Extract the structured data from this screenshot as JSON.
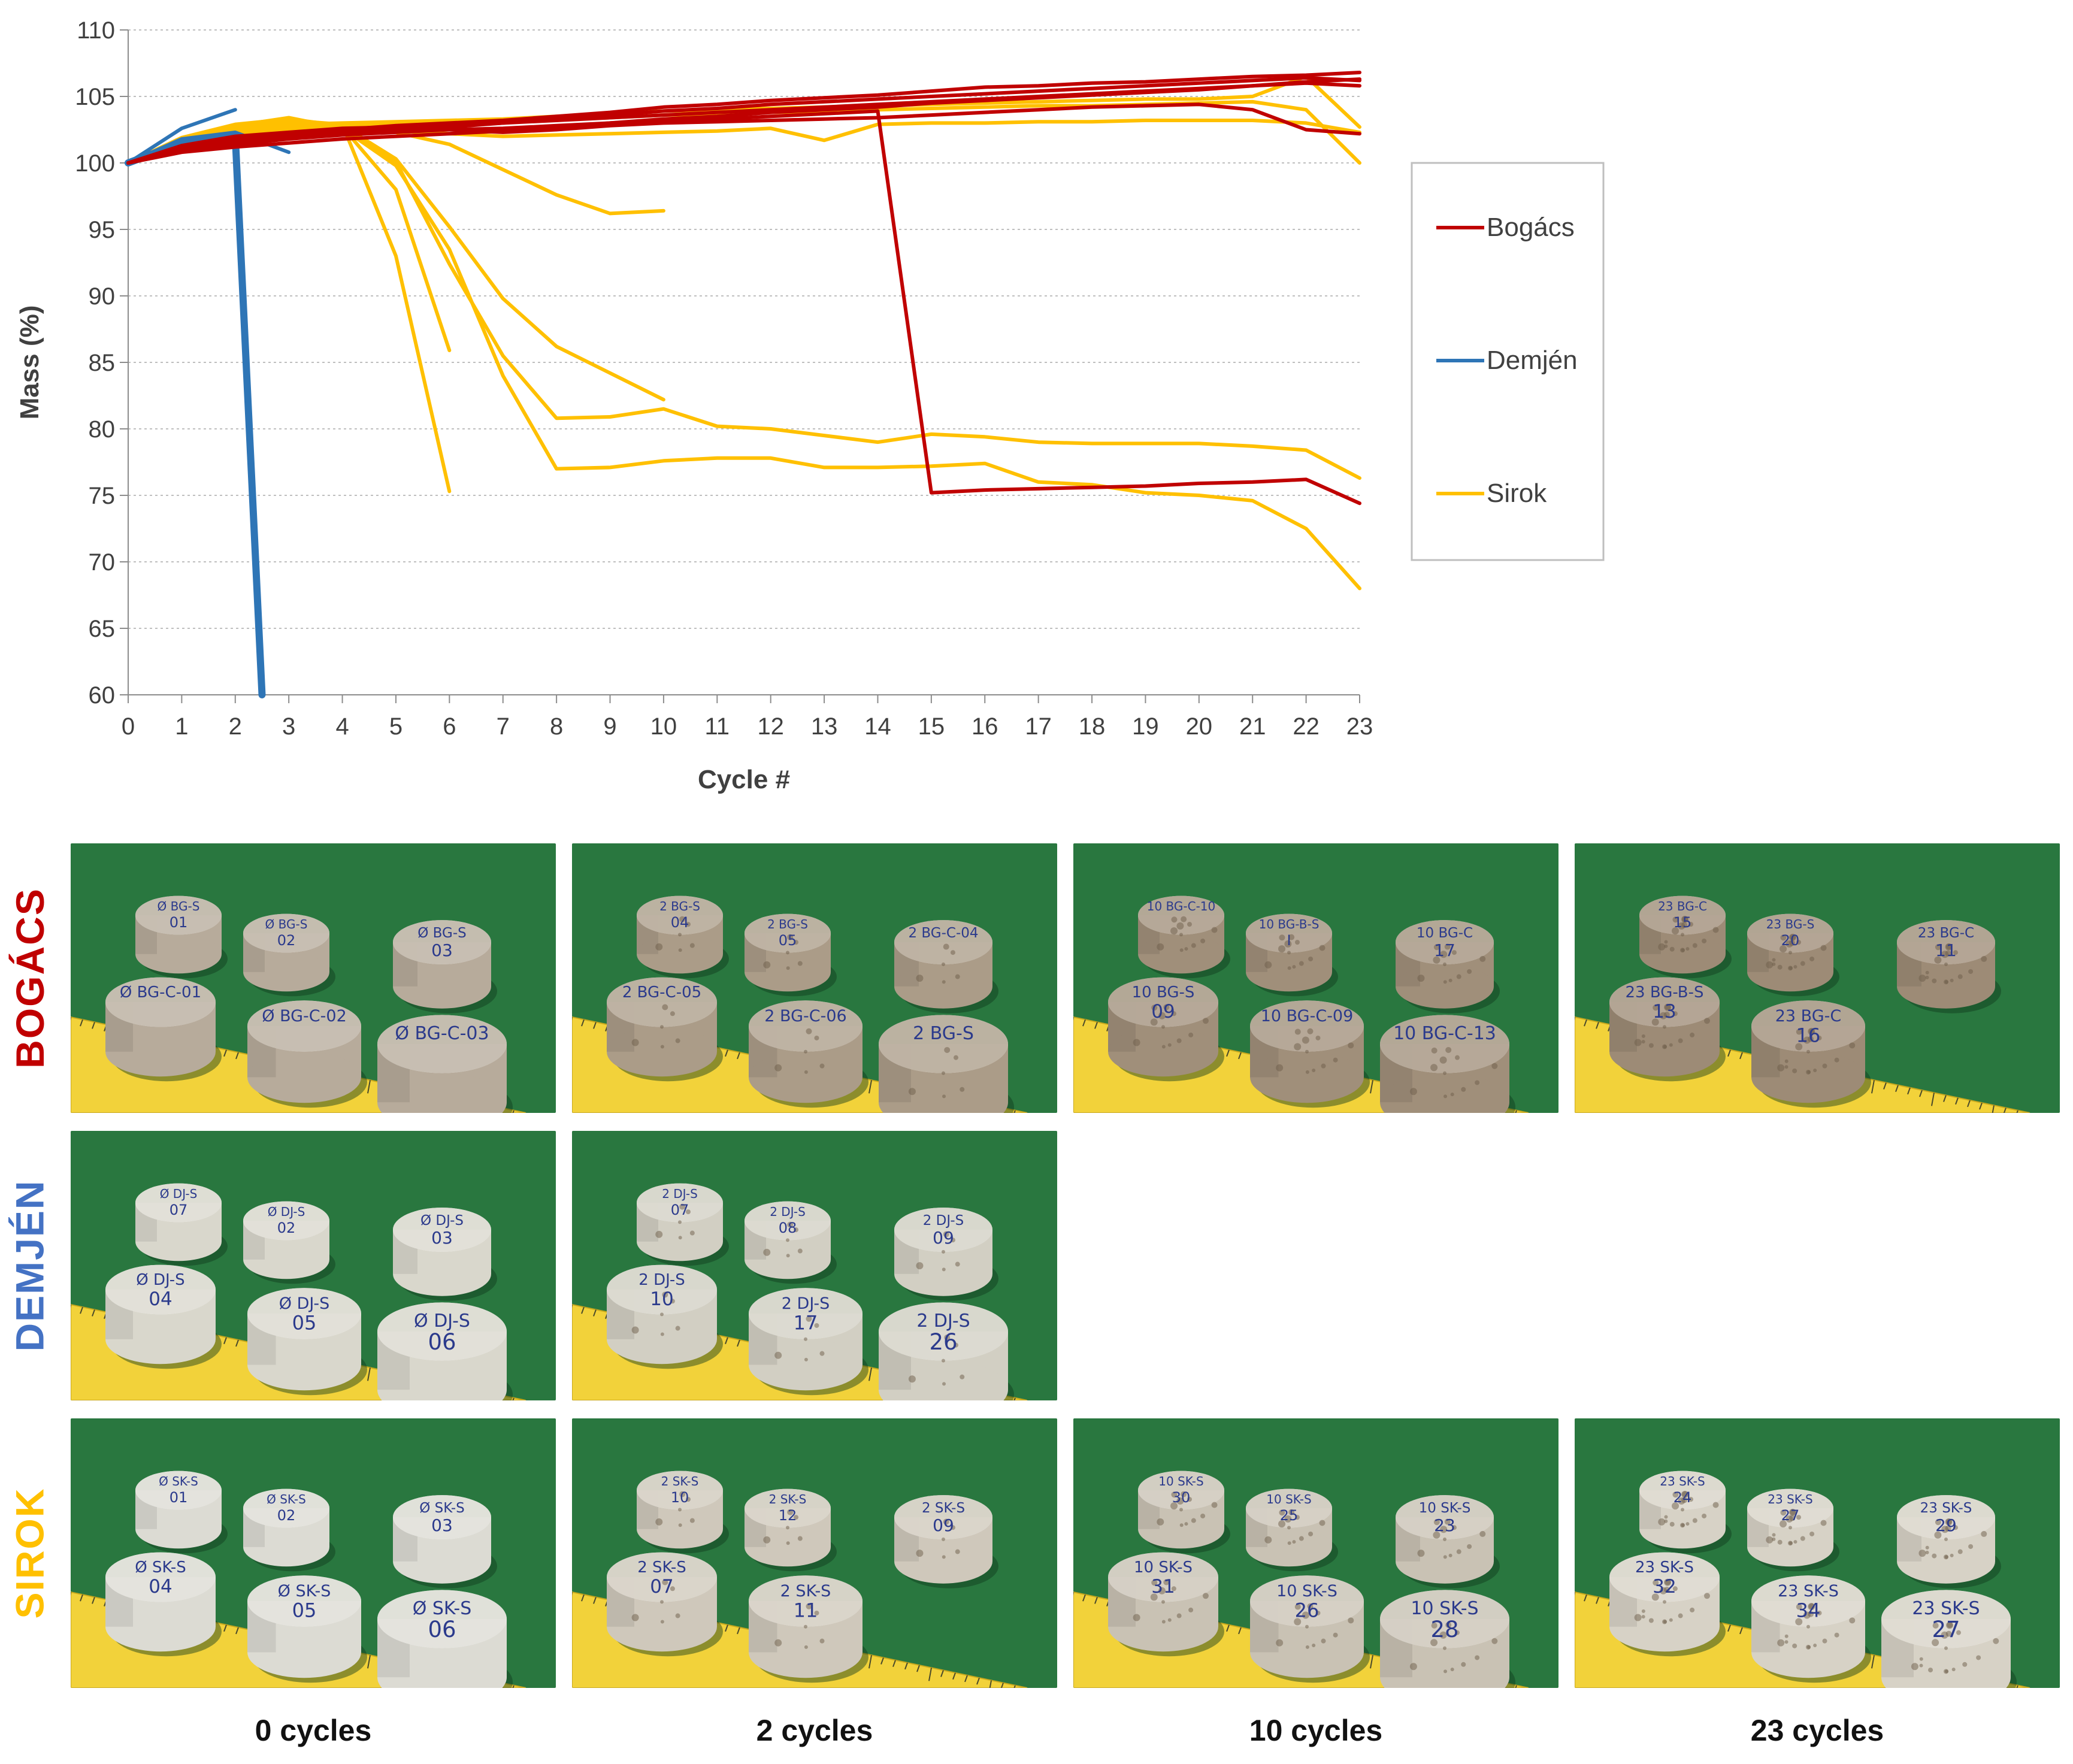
{
  "chart_data": {
    "type": "line",
    "title": "",
    "xlabel": "Cycle #",
    "ylabel": "Mass (%)",
    "xlim": [
      0,
      23
    ],
    "ylim": [
      60,
      110
    ],
    "x_ticks": [
      "0",
      "1",
      "2",
      "3",
      "4",
      "5",
      "6",
      "7",
      "8",
      "9",
      "10",
      "11",
      "12",
      "13",
      "14",
      "15",
      "16",
      "17",
      "18",
      "19",
      "20",
      "21",
      "22",
      "23"
    ],
    "y_ticks": [
      "60",
      "65",
      "70",
      "75",
      "80",
      "85",
      "90",
      "95",
      "100",
      "105",
      "110"
    ],
    "grid": "horizontal dotted",
    "legend_position": "right",
    "legend": [
      {
        "name": "Bogács",
        "color": "#c00000"
      },
      {
        "name": "Demjén",
        "color": "#2e75b6"
      },
      {
        "name": "Sirok",
        "color": "#ffc000"
      }
    ],
    "series": [
      {
        "group": "Bogács",
        "x": [
          0,
          1,
          2,
          3,
          4,
          5,
          6,
          7,
          8,
          9,
          10,
          11,
          12,
          13,
          14,
          15,
          16,
          17,
          18,
          19,
          20,
          21,
          22,
          23
        ],
        "y": [
          100,
          101.2,
          101.8,
          102.1,
          102.5,
          102.8,
          103.0,
          103.2,
          103.5,
          103.8,
          104.2,
          104.4,
          104.7,
          104.9,
          105.1,
          105.4,
          105.7,
          105.8,
          106.0,
          106.1,
          106.3,
          106.5,
          106.6,
          106.8
        ]
      },
      {
        "group": "Bogács",
        "x": [
          0,
          1,
          2,
          3,
          4,
          5,
          6,
          7,
          8,
          9,
          10,
          11,
          12,
          13,
          14,
          15,
          16,
          17,
          18,
          19,
          20,
          21,
          22,
          23
        ],
        "y": [
          100,
          101.0,
          101.5,
          101.9,
          102.2,
          102.5,
          102.7,
          103.0,
          103.3,
          103.6,
          103.9,
          104.1,
          104.4,
          104.6,
          104.8,
          105.0,
          105.2,
          105.4,
          105.6,
          105.8,
          106.0,
          106.2,
          106.4,
          106.2
        ]
      },
      {
        "group": "Bogács",
        "x": [
          0,
          1,
          2,
          3,
          4,
          5,
          6,
          7,
          8,
          9,
          10,
          11,
          12,
          13,
          14,
          15,
          16,
          17,
          18,
          19,
          20,
          21,
          22,
          23
        ],
        "y": [
          100,
          100.8,
          101.2,
          101.5,
          101.8,
          102.0,
          102.2,
          102.4,
          102.7,
          103.0,
          103.3,
          103.5,
          103.8,
          104.0,
          104.2,
          104.5,
          104.7,
          104.9,
          105.1,
          105.3,
          105.5,
          105.8,
          106.0,
          105.8
        ]
      },
      {
        "group": "Bogács",
        "x": [
          0,
          1,
          2,
          3,
          4,
          5,
          6,
          7,
          8,
          9,
          10,
          11,
          12,
          13,
          14,
          15,
          16,
          17,
          18,
          19,
          20,
          21,
          22,
          23
        ],
        "y": [
          100,
          101.3,
          102.0,
          102.3,
          102.6,
          102.7,
          102.5,
          102.3,
          102.5,
          102.8,
          103.0,
          103.1,
          103.2,
          103.3,
          103.4,
          103.6,
          103.8,
          104.0,
          104.2,
          104.3,
          104.4,
          104.0,
          102.5,
          102.2
        ]
      },
      {
        "group": "Bogács",
        "x": [
          0,
          1,
          2,
          3,
          4,
          5,
          6,
          7,
          8,
          9,
          10,
          11,
          12,
          13,
          14,
          15,
          16,
          17,
          18,
          19,
          20,
          21,
          22,
          23
        ],
        "y": [
          100,
          101.1,
          101.6,
          102.0,
          102.3,
          102.5,
          102.8,
          103.0,
          103.2,
          103.4,
          103.6,
          103.8,
          104.0,
          104.2,
          104.4,
          104.6,
          104.8,
          105.0,
          105.2,
          105.4,
          105.6,
          105.8,
          106.1,
          106.3
        ]
      },
      {
        "group": "Bogács",
        "x": [
          0,
          1,
          2,
          3,
          4,
          5,
          6,
          7,
          8,
          9,
          10,
          11,
          12,
          13,
          14,
          15,
          16,
          17,
          18,
          19,
          20,
          21,
          22,
          23
        ],
        "y": [
          100,
          101.0,
          101.4,
          101.8,
          102.1,
          102.3,
          102.5,
          102.6,
          102.8,
          103.0,
          103.2,
          103.3,
          103.5,
          103.7,
          103.9,
          75.2,
          75.4,
          75.5,
          75.6,
          75.7,
          75.9,
          76.0,
          76.2,
          74.4
        ]
      },
      {
        "group": "Demjén",
        "x": [
          0,
          1,
          2
        ],
        "y": [
          100,
          102.6,
          104.0
        ]
      },
      {
        "group": "Demjén",
        "x": [
          0,
          1,
          2,
          3
        ],
        "y": [
          100,
          101.8,
          102.3,
          100.8
        ]
      },
      {
        "group": "Demjén",
        "x": [
          0,
          1,
          2,
          2.5
        ],
        "y": [
          100,
          101.5,
          102.0,
          60
        ]
      },
      {
        "group": "Sirok",
        "x": [
          0,
          1,
          2,
          3,
          4,
          5,
          6,
          7,
          8,
          9,
          10,
          11,
          12,
          13,
          14,
          15,
          16,
          17,
          18,
          19,
          20,
          21,
          22,
          23
        ],
        "y": [
          100,
          101.8,
          102.6,
          102.9,
          103.0,
          103.1,
          103.2,
          103.3,
          103.5,
          103.7,
          103.9,
          104.0,
          104.1,
          104.2,
          104.3,
          104.4,
          104.5,
          104.6,
          104.7,
          104.8,
          104.8,
          105.0,
          106.5,
          102.7
        ]
      },
      {
        "group": "Sirok",
        "x": [
          0,
          1,
          2,
          3,
          4,
          5,
          6,
          7,
          8,
          9,
          10,
          11,
          12,
          13,
          14,
          15,
          16,
          17,
          18,
          19,
          20,
          21,
          22,
          23
        ],
        "y": [
          100,
          101.5,
          102.4,
          102.7,
          102.8,
          102.9,
          103.0,
          103.1,
          103.3,
          103.4,
          103.6,
          103.7,
          103.8,
          103.9,
          104.0,
          104.1,
          104.2,
          104.3,
          104.3,
          104.4,
          104.5,
          104.6,
          104.0,
          100.0
        ]
      },
      {
        "group": "Sirok",
        "x": [
          0,
          1,
          2,
          3,
          4,
          5,
          6,
          7,
          8,
          9,
          10,
          11,
          12,
          13,
          14,
          15,
          16,
          17,
          18,
          19,
          20,
          21,
          22,
          23
        ],
        "y": [
          100,
          101.4,
          102.2,
          102.5,
          102.6,
          102.4,
          102.2,
          102.0,
          102.1,
          102.2,
          102.3,
          102.4,
          102.6,
          101.7,
          102.9,
          103.0,
          103.0,
          103.1,
          103.1,
          103.2,
          103.2,
          103.2,
          103.0,
          102.3
        ]
      },
      {
        "group": "Sirok",
        "x": [
          0,
          1,
          2,
          3,
          4,
          5,
          6,
          7,
          8,
          9,
          10
        ],
        "y": [
          100,
          101.6,
          102.5,
          102.8,
          102.7,
          102.3,
          101.4,
          99.5,
          97.6,
          96.2,
          96.4
        ]
      },
      {
        "group": "Sirok",
        "x": [
          0,
          1,
          2,
          3,
          4,
          5,
          6
        ],
        "y": [
          100,
          101.7,
          102.6,
          103.2,
          102.9,
          93.0,
          75.3
        ]
      },
      {
        "group": "Sirok",
        "x": [
          0,
          1,
          2,
          3,
          4,
          5,
          6
        ],
        "y": [
          100,
          101.5,
          102.5,
          103.1,
          102.7,
          98.0,
          85.9
        ]
      },
      {
        "group": "Sirok",
        "x": [
          0,
          1,
          2,
          3,
          4,
          5,
          6,
          7,
          8,
          9,
          10
        ],
        "y": [
          100,
          101.6,
          102.7,
          103.0,
          102.8,
          100.3,
          95.2,
          89.8,
          86.2,
          84.2,
          82.2
        ]
      },
      {
        "group": "Sirok",
        "x": [
          0,
          1,
          2,
          3,
          4,
          5,
          6,
          7,
          8,
          9,
          10,
          11,
          12,
          13,
          14,
          15,
          16,
          17,
          18,
          19,
          20,
          21,
          22,
          23
        ],
        "y": [
          100,
          101.9,
          102.9,
          103.3,
          102.8,
          100.1,
          92.4,
          85.5,
          80.8,
          80.9,
          81.5,
          80.2,
          80.0,
          79.5,
          79.0,
          79.6,
          79.4,
          79.0,
          78.9,
          78.9,
          78.9,
          78.7,
          78.4,
          76.3
        ]
      },
      {
        "group": "Sirok",
        "x": [
          0,
          1,
          2,
          3,
          4,
          5,
          6,
          7,
          8,
          9,
          10,
          11,
          12,
          13,
          14,
          15,
          16,
          17,
          18,
          19,
          20,
          21,
          22,
          23
        ],
        "y": [
          100,
          101.8,
          102.8,
          103.4,
          102.6,
          99.8,
          93.5,
          84.0,
          77.0,
          77.1,
          77.6,
          77.8,
          77.8,
          77.1,
          77.1,
          77.2,
          77.4,
          76.0,
          75.8,
          75.2,
          75.0,
          74.6,
          72.5,
          68.0
        ]
      }
    ]
  },
  "figure": {
    "row_labels": [
      {
        "text": "BOGÁCS",
        "color": "#c00000"
      },
      {
        "text": "DEMJÉN",
        "color": "#4472c4"
      },
      {
        "text": "SIROK",
        "color": "#ffc000"
      }
    ],
    "column_labels": [
      "0 cycles",
      "2 cycles",
      "10 cycles",
      "23 cycles"
    ],
    "photos": {
      "bogacs_0": [
        "Ø BG-S 01",
        "Ø BG-S 02",
        "Ø BG-S 03",
        "Ø BG-C-01",
        "Ø BG-C-02",
        "Ø BG-C-03"
      ],
      "bogacs_2": [
        "2 BG-S 04",
        "2 BG-S 05",
        "2 BG-C-04",
        "2 BG-C-05",
        "2 BG-C-06",
        "2 BG-S"
      ],
      "bogacs_10": [
        "10 BG-C-10",
        "10 BG-B-S I",
        "10 BG-C 17",
        "10 BG-S 09",
        "10 BG-C-09",
        "10 BG-C-13"
      ],
      "bogacs_23": [
        "23 BG-C 15",
        "23 BG-S 20",
        "23 BG-C 11",
        "23 BG-B-S 13",
        "23 BG-C 16"
      ],
      "demjen_0": [
        "Ø DJ-S 07",
        "Ø DJ-S 02",
        "Ø DJ-S 03",
        "Ø DJ-S 04",
        "Ø DJ-S 05",
        "Ø DJ-S 06"
      ],
      "demjen_2": [
        "2 DJ-S 07",
        "2 DJ-S 08",
        "2 DJ-S 09",
        "2 DJ-S 10",
        "2 DJ-S 17",
        "2 DJ-S 26"
      ],
      "sirok_0": [
        "Ø SK-S 01",
        "Ø SK-S 02",
        "Ø SK-S 03",
        "Ø SK-S 04",
        "Ø SK-S 05",
        "Ø SK-S 06"
      ],
      "sirok_2": [
        "2 SK-S 10",
        "2 SK-S 12",
        "2 SK-S 09",
        "2 SK-S 07",
        "2 SK-S 11"
      ],
      "sirok_10": [
        "10 SK-S 30",
        "10 SK-S 25",
        "10 SK-S 23",
        "10 SK-S 31",
        "10 SK-S 26",
        "10 SK-S 28"
      ],
      "sirok_23": [
        "23 SK-S 24",
        "23 SK-S 27",
        "23 SK-S 29",
        "23 SK-S 32",
        "23 SK-S 34",
        "23 SK-S 27"
      ]
    }
  }
}
